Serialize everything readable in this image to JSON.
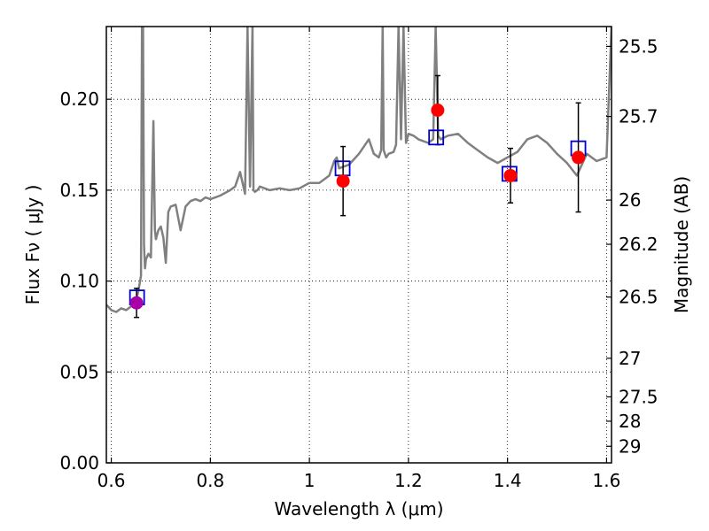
{
  "chart_data": {
    "type": "scatter",
    "xlabel": "Wavelength  λ (μm)",
    "ylabel": "Flux  Fν  ( μJy )",
    "y2label": "Magnitude (AB)",
    "xlim": [
      0.59,
      1.61
    ],
    "ylim": [
      0.0,
      0.24
    ],
    "grid": true,
    "x_ticks": [
      0.6,
      0.8,
      1.0,
      1.2,
      1.4,
      1.6
    ],
    "x_tick_labels": [
      "0.6",
      "0.8",
      "1",
      "1.2",
      "1.4",
      "1.6"
    ],
    "y_ticks": [
      0.0,
      0.05,
      0.1,
      0.15,
      0.2
    ],
    "y_tick_labels": [
      "0.00",
      "0.05",
      "0.10",
      "0.15",
      "0.20"
    ],
    "mag_ticks": [
      25.5,
      25.7,
      26,
      26.2,
      26.5,
      27,
      27.5,
      28,
      29
    ],
    "mag_tick_labels": [
      "25.5",
      "25.7",
      "26",
      "26.2",
      "26.5",
      "27",
      "27.5",
      "28",
      "29"
    ],
    "observed": {
      "x": [
        1.068,
        1.259,
        1.406,
        1.543
      ],
      "y": [
        0.155,
        0.194,
        0.158,
        0.168
      ],
      "yerr": [
        0.019,
        0.019,
        0.015,
        0.03
      ],
      "color": "#ff0000"
    },
    "observed_special": {
      "x": [
        0.651
      ],
      "y": [
        0.088
      ],
      "yerr": [
        0.008
      ],
      "color": "#aa00aa"
    },
    "model_photometry": {
      "x": [
        0.652,
        1.067,
        1.256,
        1.404,
        1.543
      ],
      "y": [
        0.091,
        0.162,
        0.179,
        0.159,
        0.173
      ],
      "color": "#0000cc"
    },
    "spectrum": {
      "color": "#808080",
      "x": [
        0.59,
        0.6,
        0.61,
        0.62,
        0.63,
        0.64,
        0.645,
        0.65,
        0.655,
        0.66,
        0.662,
        0.664,
        0.666,
        0.668,
        0.67,
        0.675,
        0.68,
        0.685,
        0.688,
        0.69,
        0.695,
        0.7,
        0.705,
        0.71,
        0.715,
        0.72,
        0.73,
        0.74,
        0.75,
        0.76,
        0.77,
        0.78,
        0.79,
        0.8,
        0.82,
        0.84,
        0.85,
        0.86,
        0.87,
        0.875,
        0.88,
        0.885,
        0.887,
        0.89,
        0.895,
        0.9,
        0.92,
        0.94,
        0.96,
        0.98,
        1.0,
        1.02,
        1.04,
        1.05,
        1.055,
        1.06,
        1.08,
        1.1,
        1.12,
        1.13,
        1.14,
        1.145,
        1.148,
        1.15,
        1.155,
        1.16,
        1.17,
        1.175,
        1.18,
        1.185,
        1.19,
        1.195,
        1.2,
        1.21,
        1.22,
        1.24,
        1.25,
        1.255,
        1.26,
        1.265,
        1.28,
        1.3,
        1.32,
        1.34,
        1.36,
        1.38,
        1.4,
        1.42,
        1.44,
        1.46,
        1.48,
        1.5,
        1.52,
        1.54,
        1.56,
        1.58,
        1.6,
        1.61
      ],
      "y": [
        0.087,
        0.084,
        0.083,
        0.085,
        0.084,
        0.086,
        0.087,
        0.089,
        0.095,
        0.103,
        0.24,
        0.24,
        0.12,
        0.107,
        0.112,
        0.115,
        0.113,
        0.188,
        0.128,
        0.123,
        0.128,
        0.13,
        0.124,
        0.11,
        0.138,
        0.141,
        0.142,
        0.128,
        0.141,
        0.144,
        0.145,
        0.144,
        0.146,
        0.145,
        0.147,
        0.15,
        0.152,
        0.16,
        0.148,
        0.24,
        0.152,
        0.24,
        0.15,
        0.149,
        0.15,
        0.152,
        0.15,
        0.151,
        0.15,
        0.151,
        0.154,
        0.154,
        0.158,
        0.166,
        0.168,
        0.162,
        0.164,
        0.17,
        0.178,
        0.17,
        0.168,
        0.172,
        0.24,
        0.172,
        0.168,
        0.17,
        0.171,
        0.175,
        0.24,
        0.178,
        0.24,
        0.176,
        0.181,
        0.18,
        0.178,
        0.176,
        0.178,
        0.24,
        0.18,
        0.178,
        0.18,
        0.181,
        0.176,
        0.172,
        0.168,
        0.165,
        0.168,
        0.171,
        0.178,
        0.18,
        0.176,
        0.17,
        0.165,
        0.158,
        0.17,
        0.166,
        0.168,
        0.24
      ]
    }
  }
}
